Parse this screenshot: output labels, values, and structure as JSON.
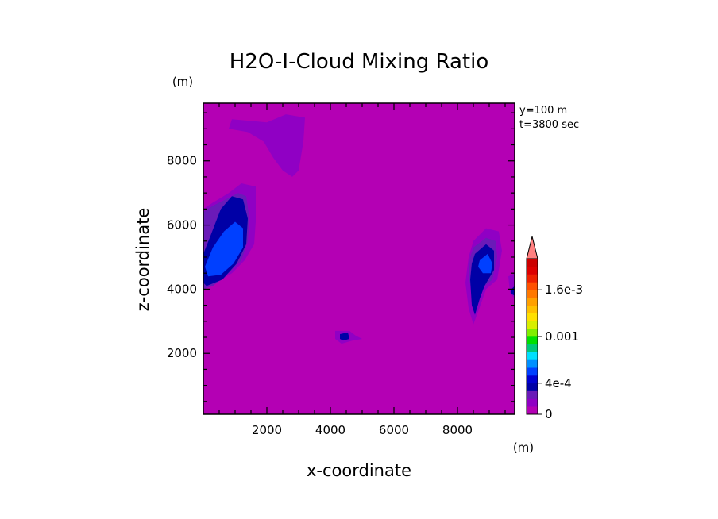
{
  "chart_data": {
    "type": "heatmap",
    "subtype": "filled-contour",
    "title": "H2O-I-Cloud Mixing Ratio",
    "xlabel": "x-coordinate",
    "ylabel": "z-coordinate",
    "x_unit": "(m)",
    "y_unit": "(m)",
    "xlim": [
      0,
      9800
    ],
    "ylim": [
      100,
      9800
    ],
    "x_ticks": [
      2000,
      4000,
      6000,
      8000
    ],
    "y_ticks": [
      2000,
      4000,
      6000,
      8000
    ],
    "x_tick_labels": [
      "2000",
      "4000",
      "6000",
      "8000"
    ],
    "y_tick_labels": [
      "2000",
      "4000",
      "6000",
      "8000"
    ],
    "info": [
      "y=100 m",
      "t=3800 sec"
    ],
    "background_color": "#b400b4",
    "colorbar": {
      "levels": [
        0,
        0.0001,
        0.0002,
        0.0003,
        0.0004,
        0.0005,
        0.0006,
        0.0007,
        0.0008,
        0.0009,
        0.001,
        0.0011,
        0.0012,
        0.0013,
        0.0014,
        0.0015,
        0.0016,
        0.0017,
        0.0018,
        0.0019,
        0.002
      ],
      "colors": [
        "#b400b4",
        "#9000c4",
        "#6a1ab8",
        "#0000a6",
        "#0000d0",
        "#0040ff",
        "#0090ff",
        "#00e0ff",
        "#00c87a",
        "#00e000",
        "#80ee00",
        "#d8ee00",
        "#ffe000",
        "#ffc000",
        "#ffa000",
        "#ff7800",
        "#ff5000",
        "#ee2000",
        "#dd0000",
        "#cc0000"
      ],
      "extend_color": "#ff8080",
      "labels": [
        {
          "value": 0,
          "text": "0"
        },
        {
          "value": 0.0004,
          "text": "4e-4"
        },
        {
          "value": 0.001,
          "text": "0.001"
        },
        {
          "value": 0.0016,
          "text": "1.6e-3"
        }
      ]
    },
    "regions": [
      {
        "name": "top-cloud-outer",
        "level": 1,
        "points": [
          [
            900,
            9300
          ],
          [
            2000,
            9200
          ],
          [
            2600,
            9450
          ],
          [
            3200,
            9350
          ],
          [
            3150,
            8600
          ],
          [
            3000,
            7700
          ],
          [
            2800,
            7500
          ],
          [
            2500,
            7700
          ],
          [
            2200,
            8100
          ],
          [
            1900,
            8600
          ],
          [
            1400,
            8900
          ],
          [
            800,
            9000
          ]
        ]
      },
      {
        "name": "left-cloud-outer",
        "level": 1,
        "points": [
          [
            0,
            6500
          ],
          [
            300,
            6700
          ],
          [
            800,
            7000
          ],
          [
            1200,
            7300
          ],
          [
            1650,
            7200
          ],
          [
            1650,
            6100
          ],
          [
            1600,
            5400
          ],
          [
            1300,
            4900
          ],
          [
            900,
            4500
          ],
          [
            400,
            4200
          ],
          [
            0,
            4000
          ]
        ]
      },
      {
        "name": "left-cloud-mid",
        "level": 2,
        "points": [
          [
            0,
            6400
          ],
          [
            300,
            6600
          ],
          [
            700,
            6800
          ],
          [
            1100,
            7000
          ],
          [
            1350,
            6900
          ],
          [
            1450,
            6200
          ],
          [
            1400,
            5500
          ],
          [
            1200,
            4900
          ],
          [
            800,
            4500
          ],
          [
            300,
            4100
          ],
          [
            0,
            4000
          ]
        ]
      },
      {
        "name": "left-cloud-dark",
        "level": 3,
        "points": [
          [
            0,
            5100
          ],
          [
            200,
            5600
          ],
          [
            550,
            6500
          ],
          [
            900,
            6900
          ],
          [
            1250,
            6800
          ],
          [
            1400,
            6200
          ],
          [
            1350,
            5400
          ],
          [
            1050,
            4800
          ],
          [
            600,
            4300
          ],
          [
            100,
            4100
          ],
          [
            0,
            4200
          ]
        ]
      },
      {
        "name": "left-cloud-core",
        "level": 5,
        "points": [
          [
            50,
            4700
          ],
          [
            300,
            5300
          ],
          [
            650,
            5800
          ],
          [
            1000,
            6100
          ],
          [
            1250,
            5900
          ],
          [
            1250,
            5300
          ],
          [
            950,
            4800
          ],
          [
            550,
            4450
          ],
          [
            150,
            4400
          ]
        ]
      },
      {
        "name": "right-cloud-outer",
        "level": 1,
        "points": [
          [
            8500,
            5500
          ],
          [
            8900,
            5900
          ],
          [
            9300,
            5800
          ],
          [
            9400,
            5200
          ],
          [
            9250,
            4300
          ],
          [
            8900,
            4000
          ],
          [
            8650,
            3300
          ],
          [
            8500,
            2900
          ],
          [
            8350,
            3400
          ],
          [
            8250,
            4200
          ],
          [
            8350,
            5000
          ]
        ]
      },
      {
        "name": "right-cloud-mid",
        "level": 2,
        "points": [
          [
            8500,
            5300
          ],
          [
            8900,
            5600
          ],
          [
            9200,
            5500
          ],
          [
            9250,
            5000
          ],
          [
            9100,
            4300
          ],
          [
            8800,
            4050
          ],
          [
            8600,
            3700
          ],
          [
            8450,
            3900
          ],
          [
            8350,
            4400
          ],
          [
            8400,
            5000
          ]
        ]
      },
      {
        "name": "right-cloud-dark",
        "level": 3,
        "points": [
          [
            8550,
            5100
          ],
          [
            8900,
            5400
          ],
          [
            9150,
            5200
          ],
          [
            9150,
            4600
          ],
          [
            8850,
            4100
          ],
          [
            8700,
            3700
          ],
          [
            8550,
            3200
          ],
          [
            8450,
            3500
          ],
          [
            8400,
            4300
          ],
          [
            8450,
            4800
          ]
        ]
      },
      {
        "name": "right-cloud-core",
        "level": 5,
        "points": [
          [
            8700,
            4900
          ],
          [
            8950,
            5100
          ],
          [
            9100,
            4800
          ],
          [
            9050,
            4500
          ],
          [
            8800,
            4500
          ],
          [
            8650,
            4700
          ]
        ]
      },
      {
        "name": "right-edge-blob",
        "level": 1,
        "points": [
          [
            9600,
            4400
          ],
          [
            9800,
            4500
          ],
          [
            9800,
            3700
          ],
          [
            9650,
            3900
          ]
        ]
      },
      {
        "name": "right-edge-core",
        "level": 3,
        "points": [
          [
            9700,
            4000
          ],
          [
            9800,
            4100
          ],
          [
            9800,
            3800
          ],
          [
            9700,
            3850
          ]
        ]
      },
      {
        "name": "small-blob-outer",
        "level": 1,
        "points": [
          [
            4150,
            2700
          ],
          [
            4600,
            2700
          ],
          [
            4800,
            2550
          ],
          [
            5000,
            2450
          ],
          [
            4700,
            2400
          ],
          [
            4350,
            2300
          ],
          [
            4150,
            2450
          ]
        ]
      },
      {
        "name": "small-blob-core",
        "level": 3,
        "points": [
          [
            4300,
            2600
          ],
          [
            4550,
            2650
          ],
          [
            4600,
            2450
          ],
          [
            4400,
            2400
          ],
          [
            4300,
            2450
          ]
        ]
      }
    ]
  }
}
